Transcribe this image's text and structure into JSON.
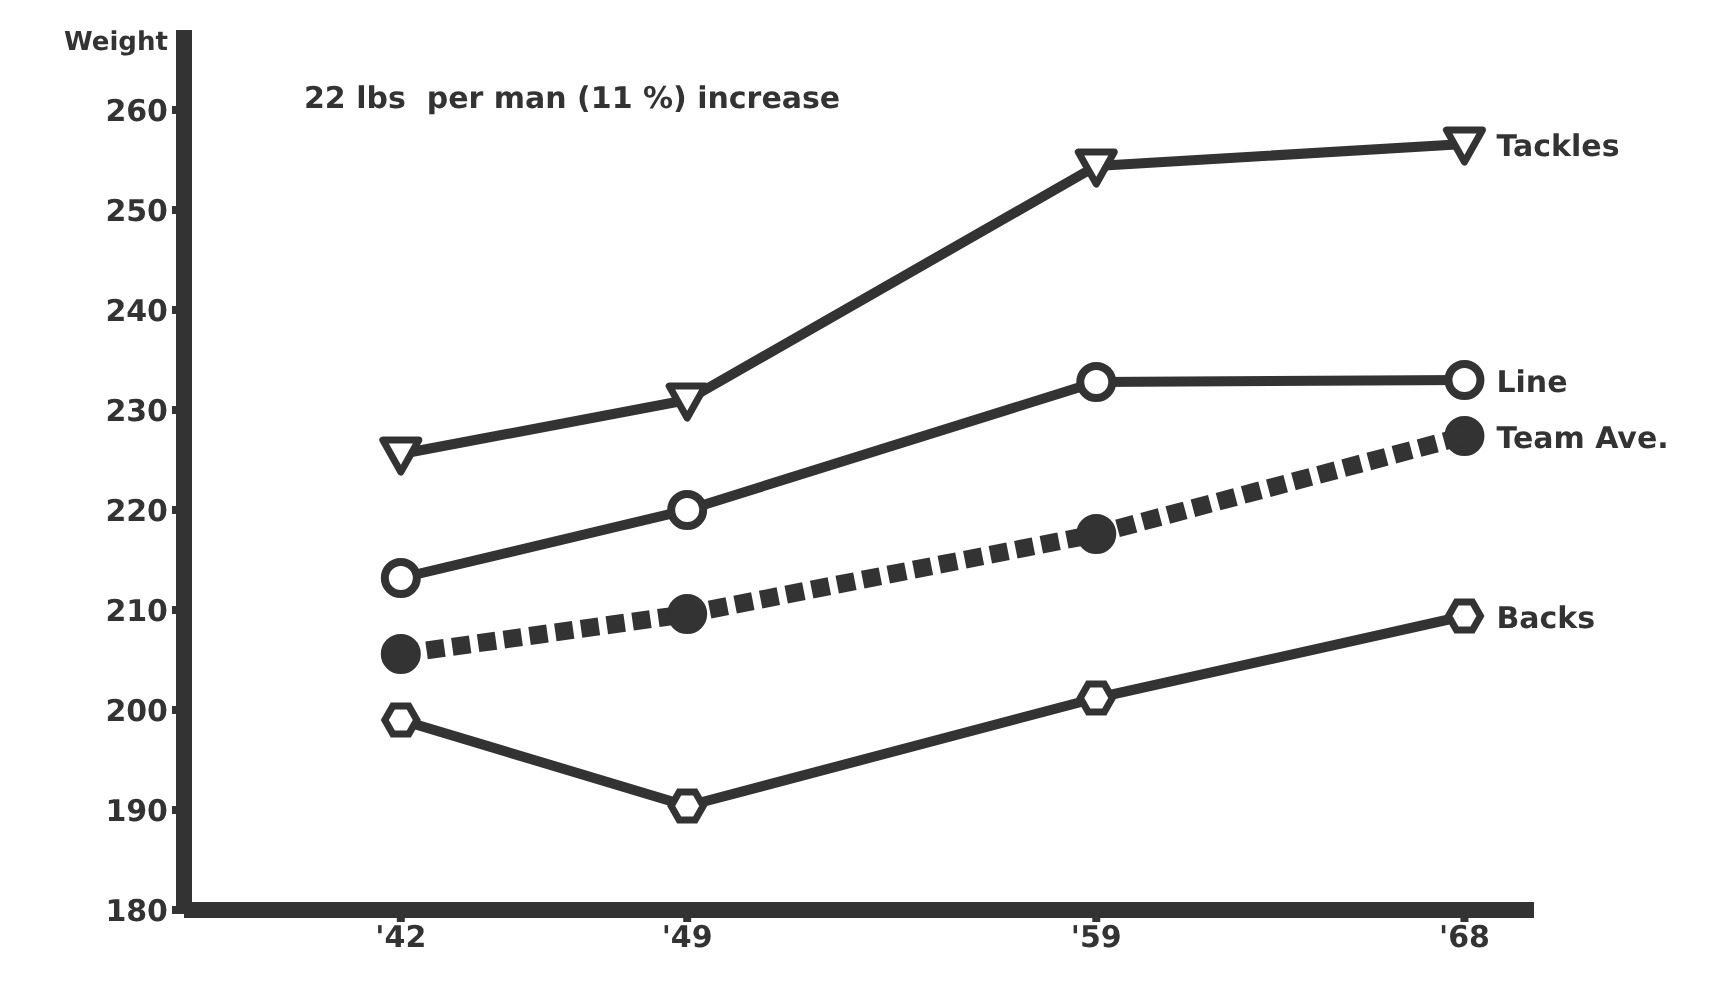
{
  "chart_data": {
    "type": "line",
    "ylabel": "Weight",
    "annotations": [
      "22 lbs  per man (11 %) increase"
    ],
    "x": [
      1942,
      1949,
      1959,
      1968
    ],
    "xlim": [
      1936.7,
      1969.7
    ],
    "xticks": [
      {
        "value": 1942,
        "label": "'42"
      },
      {
        "value": 1949,
        "label": "'49"
      },
      {
        "value": 1959,
        "label": "'59"
      },
      {
        "value": 1968,
        "label": "'68"
      }
    ],
    "ylim": [
      180,
      268
    ],
    "yticks": [
      180,
      190,
      200,
      210,
      220,
      230,
      240,
      250,
      260
    ],
    "grid": false,
    "legend": false,
    "series": [
      {
        "name": "Tackles",
        "color": "#333333",
        "values": [
          225.6,
          231,
          254.4,
          256.6
        ],
        "marker": "triangle",
        "line_style": "solid"
      },
      {
        "name": "Line",
        "color": "#333333",
        "values": [
          213.2,
          220,
          232.8,
          233
        ],
        "marker": "circle",
        "line_style": "solid"
      },
      {
        "name": "Team Ave.",
        "color": "#333333",
        "values": [
          205.6,
          209.6,
          217.6,
          227.4
        ],
        "marker": "circle",
        "line_style": "dotted"
      },
      {
        "name": "Backs",
        "color": "#333333",
        "values": [
          199,
          190.4,
          201.2,
          209.4
        ],
        "marker": "diamond",
        "line_style": "solid"
      }
    ]
  }
}
